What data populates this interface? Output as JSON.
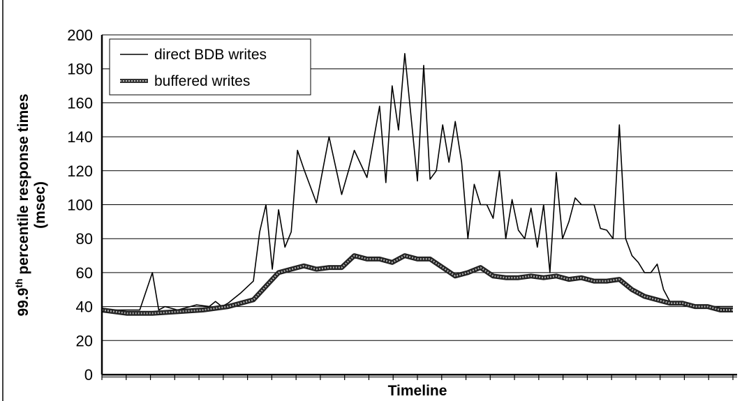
{
  "chart_data": {
    "type": "line",
    "title": "",
    "xlabel": "Timeline",
    "ylabel": "99.9th percentile response times (msec)",
    "ylabel_parts": {
      "prefix": "99.9",
      "superscript": "th",
      "suffix": " percentile response times",
      "unit": "(msec)"
    },
    "ylim": [
      0,
      200
    ],
    "yticks": [
      0,
      20,
      40,
      60,
      80,
      100,
      120,
      140,
      160,
      180,
      200
    ],
    "x_tick_count": 26,
    "grid": "horizontal",
    "legend_position": "top-left",
    "series": [
      {
        "name": "direct BDB writes",
        "style": "thin",
        "color": "#000000",
        "x": [
          0,
          3,
          6,
          8,
          9,
          10,
          12,
          15,
          17,
          18,
          19,
          20,
          21,
          22,
          24,
          25,
          26,
          27,
          28,
          29,
          30,
          31,
          32,
          34,
          36,
          38,
          40,
          42,
          44,
          45,
          46,
          47,
          48,
          50,
          51,
          52,
          53,
          54,
          55,
          56,
          57,
          58,
          59,
          60,
          61,
          62,
          63,
          64,
          65,
          66,
          67,
          68,
          69,
          70,
          71,
          72,
          73,
          74,
          75,
          76,
          77,
          78,
          79,
          80,
          81,
          82,
          83,
          84,
          85,
          86,
          87,
          88,
          89,
          90,
          91,
          92,
          93,
          94,
          95,
          96,
          97,
          98,
          99,
          100
        ],
        "values": [
          38,
          38,
          38,
          60,
          38,
          40,
          38,
          41,
          40,
          43,
          40,
          42,
          45,
          48,
          55,
          84,
          100,
          62,
          97,
          75,
          84,
          132,
          121,
          101,
          140,
          106,
          132,
          116,
          158,
          113,
          170,
          144,
          189,
          114,
          182,
          115,
          120,
          147,
          125,
          149,
          125,
          80,
          112,
          100,
          100,
          92,
          120,
          80,
          103,
          85,
          80,
          98,
          75,
          100,
          60,
          119,
          80,
          90,
          104,
          100,
          100,
          100,
          86,
          85,
          80,
          147,
          80,
          70,
          66,
          60,
          60,
          65,
          50,
          43,
          42,
          42,
          40,
          40,
          40,
          40,
          40,
          40,
          40,
          40
        ],
        "values_note": ""
      },
      {
        "name": "buffered writes",
        "style": "thick-hatched",
        "color": "#555555",
        "x": [
          0,
          4,
          8,
          12,
          16,
          20,
          24,
          26,
          28,
          30,
          32,
          34,
          36,
          38,
          40,
          42,
          44,
          46,
          48,
          50,
          52,
          54,
          56,
          58,
          60,
          62,
          64,
          66,
          68,
          70,
          72,
          74,
          76,
          78,
          80,
          82,
          84,
          86,
          88,
          90,
          92,
          94,
          96,
          98,
          100
        ],
        "values": [
          38,
          36,
          36,
          37,
          38,
          40,
          44,
          52,
          60,
          62,
          64,
          62,
          63,
          63,
          70,
          68,
          68,
          66,
          70,
          68,
          68,
          63,
          58,
          60,
          63,
          58,
          57,
          57,
          58,
          57,
          58,
          56,
          57,
          55,
          55,
          56,
          50,
          46,
          44,
          42,
          42,
          40,
          40,
          38,
          38
        ]
      }
    ]
  }
}
